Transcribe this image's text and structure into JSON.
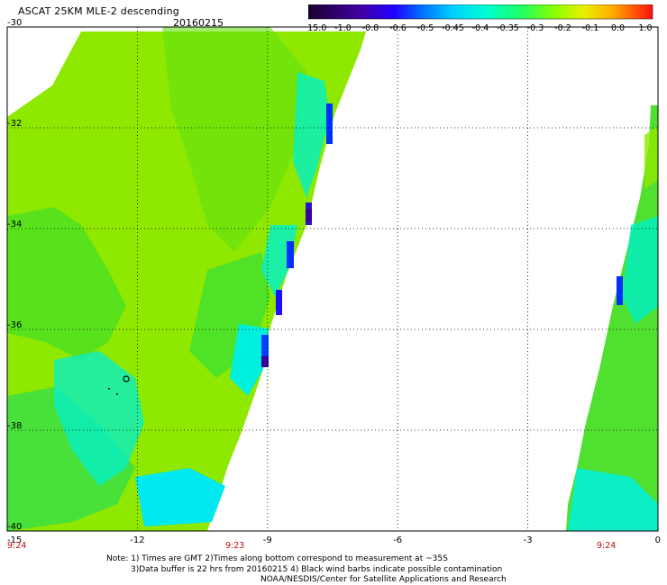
{
  "header": {
    "title": "ASCAT 25KM MLE-2 descending",
    "date": "20160215"
  },
  "colorbar": {
    "labels": [
      "-15.0",
      "-1.0",
      "-0.8",
      "-0.6",
      "-0.5",
      "-0.45",
      "-0.4",
      "-0.35",
      "-0.3",
      "-0.2",
      "-0.1",
      "0.0",
      "1.0"
    ],
    "colors": [
      "#1a0030",
      "#3c0090",
      "#6a00e0",
      "#0018ff",
      "#0070ff",
      "#00c8ff",
      "#00ffe0",
      "#00ff80",
      "#40ff20",
      "#a8ff00",
      "#f0f000",
      "#ff9000",
      "#ff2020"
    ]
  },
  "map": {
    "lon_range": [
      -15,
      0
    ],
    "lat_range": [
      -40,
      -30
    ],
    "lon_ticks": [
      "-15",
      "-12",
      "-9",
      "-6",
      "-3",
      "0"
    ],
    "lat_ticks": [
      "-30",
      "-32",
      "-34",
      "-36",
      "-38",
      "-40"
    ],
    "time_labels": [
      "9:24",
      "9:23",
      "9:24"
    ],
    "swath_colors": {
      "main": "#8ee800",
      "green": "#30e830",
      "cyan": "#00f0e8",
      "blue": "#0030ff",
      "purple": "#3a00a0"
    }
  },
  "footer": {
    "line1": "Note: 1) Times are GMT 2)Times along bottom correspond to measurement at ~35S",
    "line2": "3)Data buffer is 22 hrs from 20160215 4) Black wind barbs indicate possible contamination",
    "line3": "NOAA/NESDIS/Center for Satellite Applications and Research"
  }
}
